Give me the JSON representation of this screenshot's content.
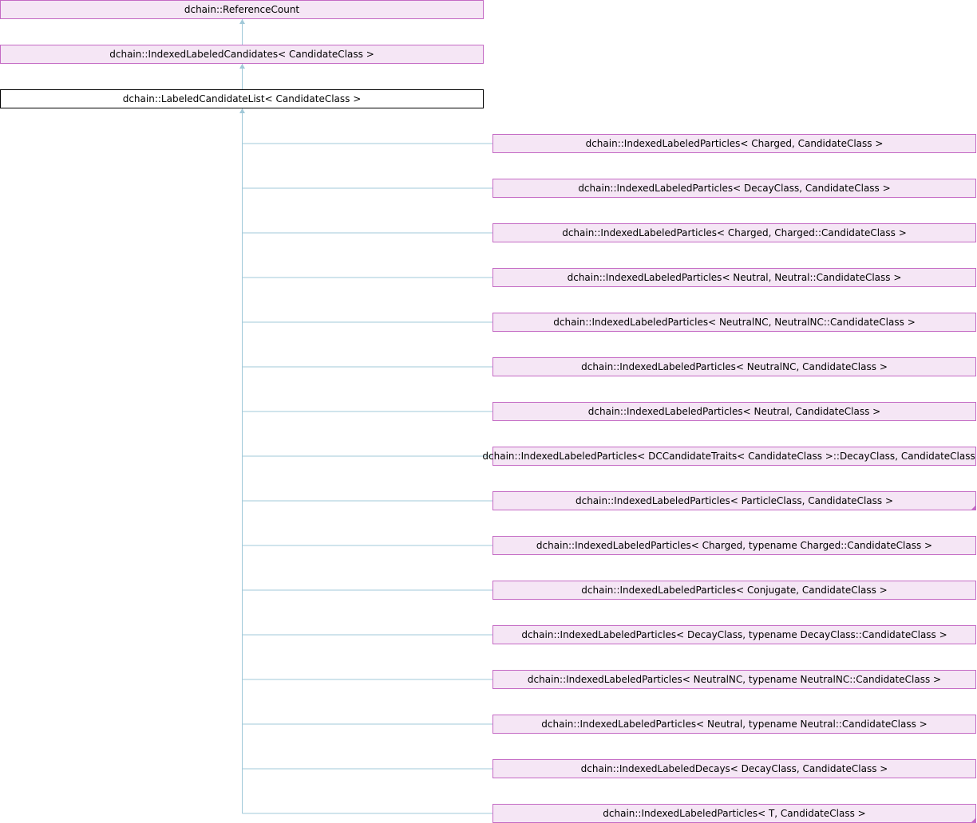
{
  "diagram": {
    "ancestors": [
      {
        "label": "dchain::ReferenceCount"
      },
      {
        "label": "dchain::IndexedLabeledCandidates< CandidateClass >"
      }
    ],
    "current": {
      "label": "dchain::LabeledCandidateList< CandidateClass >"
    },
    "derived": [
      {
        "label": "dchain::IndexedLabeledParticles< Charged, CandidateClass >"
      },
      {
        "label": "dchain::IndexedLabeledParticles< DecayClass, CandidateClass >"
      },
      {
        "label": "dchain::IndexedLabeledParticles< Charged, Charged::CandidateClass >"
      },
      {
        "label": "dchain::IndexedLabeledParticles< Neutral, Neutral::CandidateClass >"
      },
      {
        "label": "dchain::IndexedLabeledParticles< NeutralNC, NeutralNC::CandidateClass >"
      },
      {
        "label": "dchain::IndexedLabeledParticles< NeutralNC, CandidateClass >"
      },
      {
        "label": "dchain::IndexedLabeledParticles< Neutral, CandidateClass >"
      },
      {
        "label": "dchain::IndexedLabeledParticles< DCCandidateTraits< CandidateClass >::DecayClass, CandidateClass >"
      },
      {
        "label": "dchain::IndexedLabeledParticles< ParticleClass, CandidateClass >",
        "has_more": true
      },
      {
        "label": "dchain::IndexedLabeledParticles< Charged, typename Charged::CandidateClass >"
      },
      {
        "label": "dchain::IndexedLabeledParticles< Conjugate, CandidateClass >"
      },
      {
        "label": "dchain::IndexedLabeledParticles< DecayClass, typename DecayClass::CandidateClass >"
      },
      {
        "label": "dchain::IndexedLabeledParticles< NeutralNC, typename NeutralNC::CandidateClass >"
      },
      {
        "label": "dchain::IndexedLabeledParticles< Neutral, typename Neutral::CandidateClass >"
      },
      {
        "label": "dchain::IndexedLabeledDecays< DecayClass, CandidateClass >"
      },
      {
        "label": "dchain::IndexedLabeledParticles< T, CandidateClass >",
        "has_more": true
      }
    ]
  }
}
